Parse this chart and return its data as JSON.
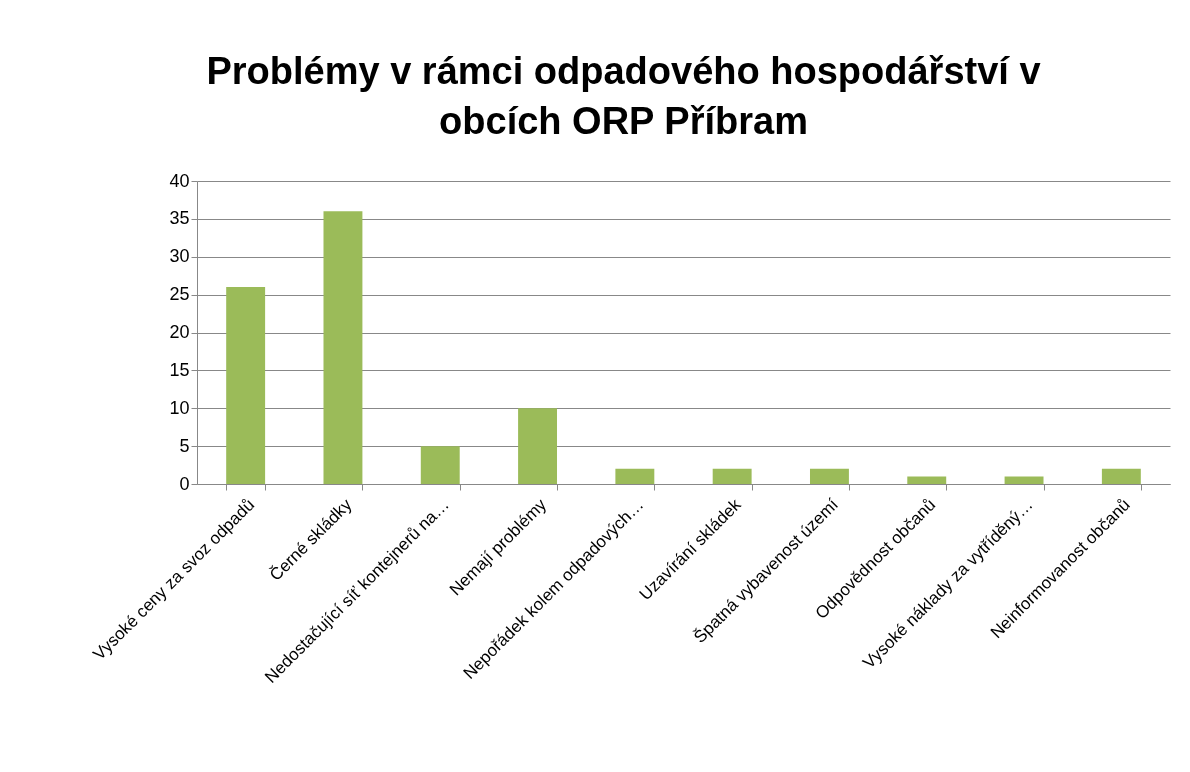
{
  "chart_data": {
    "type": "bar",
    "title": "Problémy v rámci odpadového hospodářství  v obcích ORP Příbram",
    "categories": [
      "Vysoké ceny za svoz odpadů",
      "Černé skládky",
      "Nedostačující síť kontejnerů na…",
      "Nemají problémy",
      "Nepořádek kolem odpadových…",
      "Uzavírání skládek",
      "Špatná vybavenost území",
      "Odpovědnost občanů",
      "Vysoké náklady za vytříděný…",
      "Neinformovanost občanů"
    ],
    "values": [
      26,
      36,
      5,
      10,
      2,
      2,
      2,
      1,
      1,
      2
    ],
    "color": "#9bbb59",
    "ylim": [
      0,
      40
    ],
    "yticks": [
      0,
      5,
      10,
      15,
      20,
      25,
      30,
      35,
      40
    ],
    "grid": "y"
  }
}
